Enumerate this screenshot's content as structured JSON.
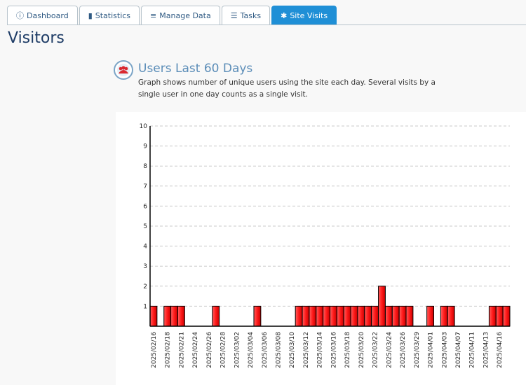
{
  "tabs": [
    "Dashboard",
    "Statistics",
    "Manage Data",
    "Tasks",
    "Site Visits"
  ],
  "active_tab": 4,
  "page_title": "Visitors",
  "section": {
    "title": "Users Last 60 Days",
    "description": "Graph shows number of unique users using the site each day. Several visits by a single user in one day counts as a single visit."
  },
  "chart_data": {
    "type": "bar",
    "categories": [
      "2025/02/16",
      null,
      "2025/02/18",
      null,
      "2025/02/21",
      null,
      "2025/02/24",
      null,
      "2025/02/26",
      null,
      "2025/02/28",
      null,
      "2025/03/02",
      null,
      "2025/03/04",
      null,
      "2025/03/06",
      null,
      "2025/03/08",
      null,
      "2025/03/10",
      null,
      "2025/03/12",
      null,
      "2025/03/14",
      null,
      "2025/03/16",
      null,
      "2025/03/18",
      null,
      "2025/03/20",
      null,
      "2025/03/22",
      null,
      "2025/03/24",
      null,
      "2025/03/26",
      null,
      "2025/03/29",
      null,
      "2025/04/01",
      null,
      "2025/04/03",
      null,
      "2025/04/07",
      null,
      "2025/04/11",
      null,
      "2025/04/13",
      null,
      "2025/04/16",
      null
    ],
    "values": [
      1,
      0,
      1,
      1,
      1,
      0,
      0,
      0,
      0,
      1,
      0,
      0,
      0,
      0,
      0,
      1,
      0,
      0,
      0,
      0,
      0,
      1,
      1,
      1,
      1,
      1,
      1,
      1,
      1,
      1,
      1,
      1,
      1,
      2,
      1,
      1,
      1,
      1,
      0,
      0,
      1,
      0,
      1,
      1,
      0,
      0,
      0,
      0,
      0,
      1,
      1,
      1
    ],
    "color": "#ff2020",
    "ylim": [
      0,
      10
    ],
    "yticks": [
      1,
      2,
      3,
      4,
      5,
      6,
      7,
      8,
      9,
      10
    ],
    "grid": true
  }
}
